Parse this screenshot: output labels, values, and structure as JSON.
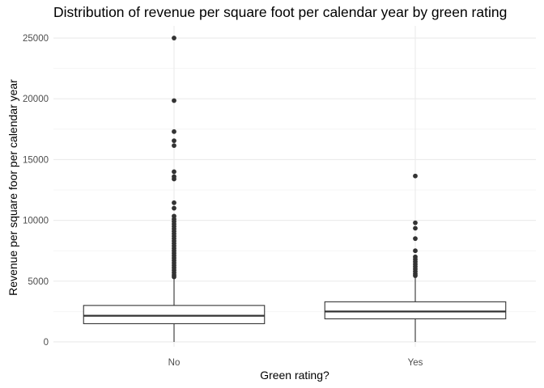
{
  "chart_data": {
    "type": "boxplot",
    "title": "Distribution of revenue per square foot per calendar year by green rating",
    "xlabel": "Green rating?",
    "ylabel": "Revenue per square foor per calendar year",
    "categories": [
      "No",
      "Yes"
    ],
    "ylim": [
      -400,
      26000
    ],
    "yticks": [
      0,
      5000,
      10000,
      15000,
      20000,
      25000
    ],
    "grid": true,
    "boxes": [
      {
        "category": "No",
        "whisker_low": 0,
        "q1": 1500,
        "median": 2150,
        "q3": 3000,
        "whisker_high": 5200,
        "outliers": [
          25000,
          19850,
          17300,
          16550,
          16150,
          14000,
          13600,
          13400,
          11450,
          11000,
          10350,
          10100,
          9900,
          9700,
          9500,
          9300,
          9100,
          8900,
          8700,
          8500,
          8300,
          8100,
          7900,
          7700,
          7500,
          7300,
          7100,
          6900,
          6700,
          6500,
          6300,
          6100,
          5900,
          5700,
          5500,
          5350
        ]
      },
      {
        "category": "Yes",
        "whisker_low": 0,
        "q1": 1900,
        "median": 2500,
        "q3": 3300,
        "whisker_high": 5300,
        "outliers": [
          13650,
          9800,
          9350,
          8500,
          7500,
          7000,
          6800,
          6600,
          6400,
          6200,
          6000,
          5800,
          5600,
          5450
        ]
      }
    ]
  }
}
